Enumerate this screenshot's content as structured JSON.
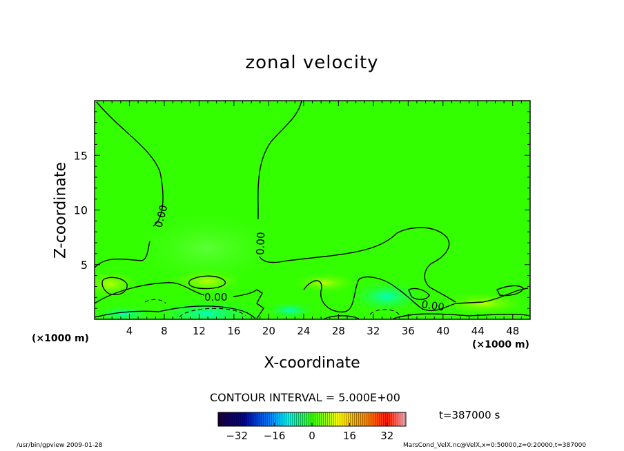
{
  "chart_data": {
    "type": "heatmap",
    "title": "zonal velocity",
    "xlabel": "X-coordinate",
    "ylabel": "Z-coordinate",
    "x_unit": "(×1000 m)",
    "y_unit": "(×1000 m)",
    "xlim": [
      0,
      50
    ],
    "ylim": [
      0,
      20
    ],
    "x_ticks": [
      4,
      8,
      12,
      16,
      20,
      24,
      28,
      32,
      36,
      40,
      44,
      48
    ],
    "y_ticks": [
      5,
      10,
      15
    ],
    "contour_label": "0.00",
    "contour_interval_text": "CONTOUR INTERVAL = 5.000E+00",
    "time_text": "t=387000 s",
    "colorbar": {
      "min": -40,
      "max": 40,
      "tick_values": [
        -32,
        -16,
        0,
        16,
        32
      ]
    },
    "footer_left": "/usr/bin/gpview  2009-01-28",
    "footer_right": "MarsCond_VelX.nc@VelX,x=0:50000,z=0:20000,t=387000",
    "colors": {
      "neutral": "#33ff00",
      "positive": "#ffff00",
      "negative": "#00e8c8"
    }
  }
}
